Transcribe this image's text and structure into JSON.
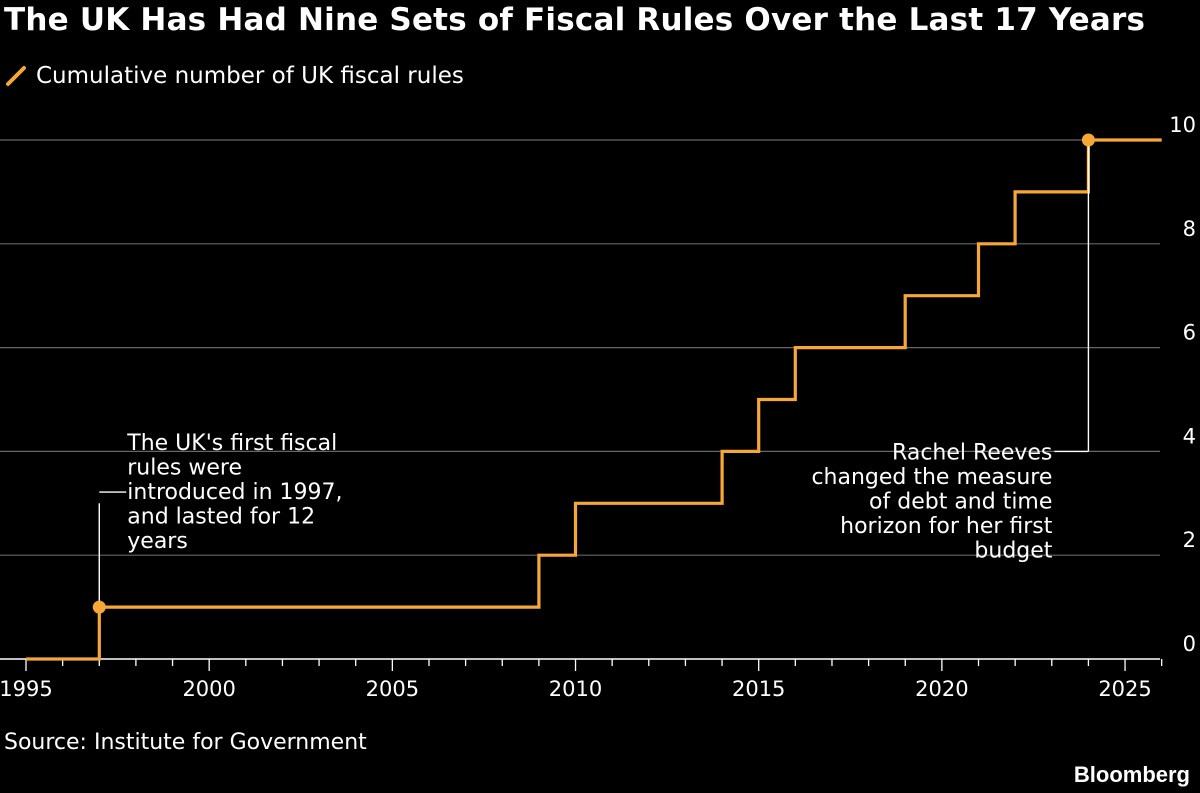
{
  "title": "The UK Has Had Nine Sets of Fiscal Rules Over the Last 17 Years",
  "source": "Source: Institute for Government",
  "brand": "Bloomberg",
  "colors": {
    "background": "#000000",
    "series": "#F7A738",
    "grid": "#666666",
    "text": "#FFFFFF"
  },
  "chart_data": {
    "type": "line",
    "step": true,
    "series": [
      {
        "name": "Cumulative number of UK fiscal rules",
        "points": [
          {
            "x": 1995,
            "y": 0
          },
          {
            "x": 1997,
            "y": 0
          },
          {
            "x": 1997,
            "y": 1
          },
          {
            "x": 2009,
            "y": 1
          },
          {
            "x": 2009,
            "y": 2
          },
          {
            "x": 2010,
            "y": 2
          },
          {
            "x": 2010,
            "y": 3
          },
          {
            "x": 2014,
            "y": 3
          },
          {
            "x": 2014,
            "y": 4
          },
          {
            "x": 2015,
            "y": 4
          },
          {
            "x": 2015,
            "y": 5
          },
          {
            "x": 2016,
            "y": 5
          },
          {
            "x": 2016,
            "y": 6
          },
          {
            "x": 2019,
            "y": 6
          },
          {
            "x": 2019,
            "y": 7
          },
          {
            "x": 2021,
            "y": 7
          },
          {
            "x": 2021,
            "y": 8
          },
          {
            "x": 2022,
            "y": 8
          },
          {
            "x": 2022,
            "y": 9
          },
          {
            "x": 2024,
            "y": 9
          },
          {
            "x": 2024,
            "y": 10
          },
          {
            "x": 2026,
            "y": 10
          }
        ]
      }
    ],
    "xlim": [
      1995,
      2026.5
    ],
    "ylim": [
      0,
      10
    ],
    "x_ticks": [
      1995,
      2000,
      2005,
      2010,
      2015,
      2020,
      2025
    ],
    "y_ticks": [
      0,
      2,
      4,
      6,
      8,
      10
    ],
    "y_axis_side": "right",
    "grid": true,
    "legend_position": "top-left",
    "annotations": [
      {
        "id": "first-rules",
        "point": {
          "x": 1997,
          "y": 1
        },
        "label_y": 3,
        "align": "left",
        "lines": [
          "The UK's first fiscal",
          "rules were",
          "introduced in 1997,",
          "and lasted for 12",
          "years"
        ]
      },
      {
        "id": "reeves",
        "point": {
          "x": 2024,
          "y": 10
        },
        "label_y": 4,
        "align": "right",
        "lines": [
          "Rachel Reeves",
          "changed the measure",
          "of debt and time",
          "horizon for her first",
          "budget"
        ]
      }
    ]
  }
}
